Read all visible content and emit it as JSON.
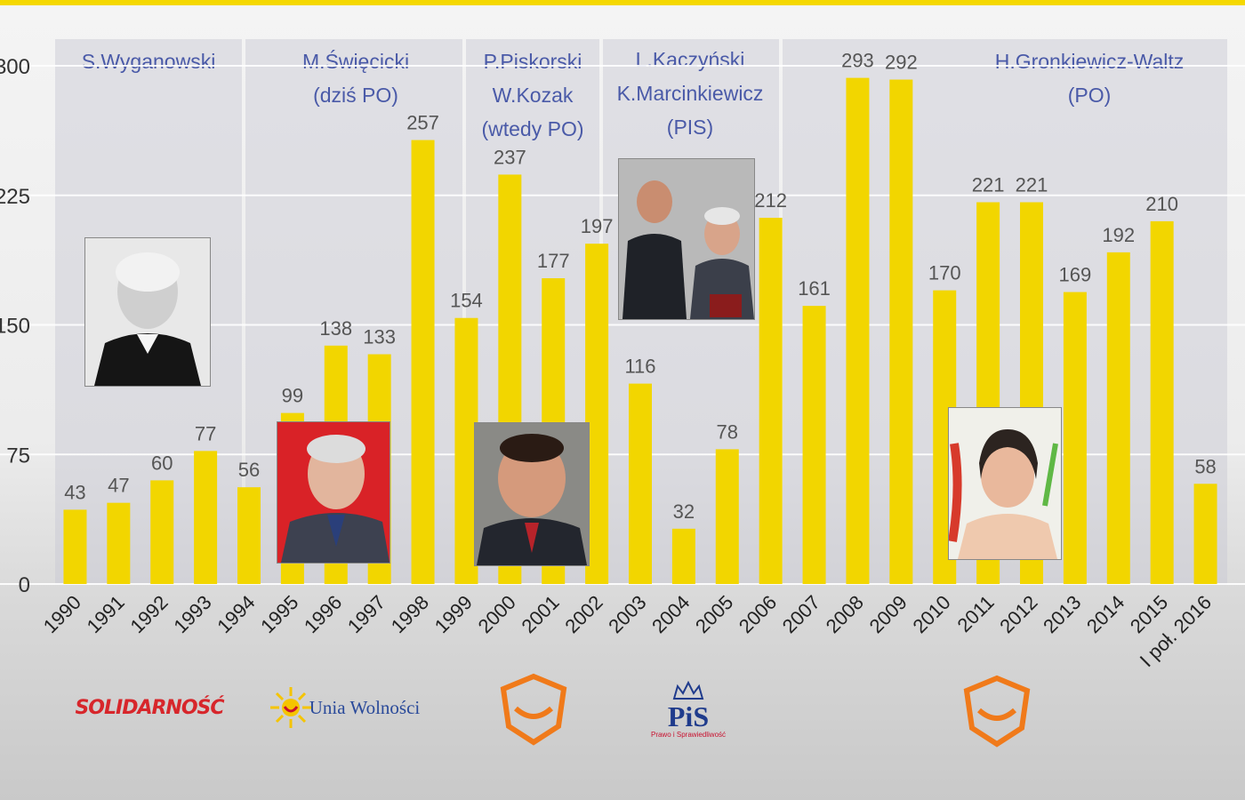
{
  "chart_data": {
    "type": "bar",
    "categories": [
      "1990",
      "1991",
      "1992",
      "1993",
      "1994",
      "1995",
      "1996",
      "1997",
      "1998",
      "1999",
      "2000",
      "2001",
      "2002",
      "2003",
      "2004",
      "2005",
      "2006",
      "2007",
      "2008",
      "2009",
      "2010",
      "2011",
      "2012",
      "2013",
      "2014",
      "2015",
      "I poł. 2016"
    ],
    "values": [
      43,
      47,
      60,
      77,
      56,
      99,
      138,
      133,
      257,
      154,
      237,
      177,
      197,
      116,
      32,
      78,
      212,
      161,
      293,
      292,
      170,
      221,
      221,
      169,
      192,
      210,
      58
    ],
    "ylim": [
      0,
      300
    ],
    "yticks": [
      "0",
      "75",
      "150",
      "225",
      "300"
    ],
    "grid": true,
    "bar_color": "#f2d600"
  },
  "tenures": [
    {
      "lines": [
        "S.Wyganowski"
      ]
    },
    {
      "lines": [
        "M.Święcicki",
        "(dziś PO)"
      ]
    },
    {
      "lines": [
        "P.Piskorski",
        "W.Kozak",
        "(wtedy PO)"
      ]
    },
    {
      "lines": [
        "L.Kaczyński",
        "K.Marcinkiewicz",
        "(PIS)"
      ]
    },
    {
      "lines": [
        "H.Gronkiewicz-Waltz",
        "(PO)"
      ]
    }
  ],
  "logos": {
    "solidarnosc": "SOLIDARNOŚĆ",
    "unia": "Unia Wolności",
    "pis": "PiS",
    "pis_sub": "Prawo i Sprawiedliwość"
  },
  "colors": {
    "bar": "#f2d600",
    "tenure_text": "#4a5aa8",
    "po_orange": "#f07a1a",
    "solidarnosc_red": "#d7262b",
    "pis_blue": "#1f3b8c"
  }
}
